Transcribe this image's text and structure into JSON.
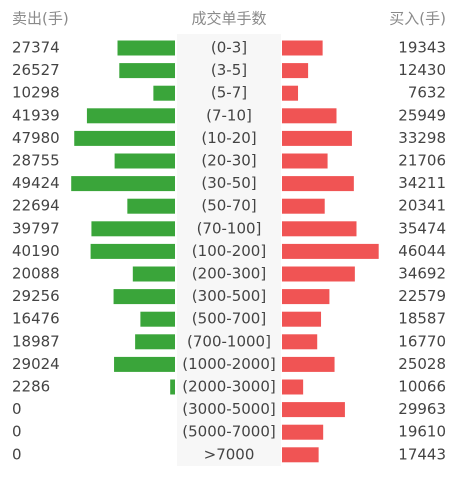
{
  "chart_data": {
    "type": "butterfly",
    "left_header": "卖出(手)",
    "center_header": "成交单手数",
    "right_header": "买入(手)",
    "categories": [
      "(0-3]",
      "(3-5]",
      "(5-7]",
      "(7-10]",
      "(10-20]",
      "(20-30]",
      "(30-50]",
      "(50-70]",
      "(70-100]",
      "(100-200]",
      "(200-300]",
      "(300-500]",
      "(500-700]",
      "(700-1000]",
      "(1000-2000]",
      "(2000-3000]",
      "(3000-5000]",
      "(5000-7000]",
      ">7000"
    ],
    "series": [
      {
        "name": "卖出",
        "color": "#3aa53a",
        "values": [
          27374,
          26527,
          10298,
          41939,
          47980,
          28755,
          49424,
          22694,
          39797,
          40190,
          20088,
          29256,
          16476,
          18987,
          29024,
          2286,
          0,
          0,
          0
        ]
      },
      {
        "name": "买入",
        "color": "#f05454",
        "values": [
          19343,
          12430,
          7632,
          25949,
          33298,
          21706,
          34211,
          20341,
          35474,
          46044,
          34692,
          22579,
          18587,
          16770,
          25028,
          10066,
          29963,
          19610,
          17443
        ]
      }
    ],
    "xlim": [
      0,
      50000
    ]
  }
}
